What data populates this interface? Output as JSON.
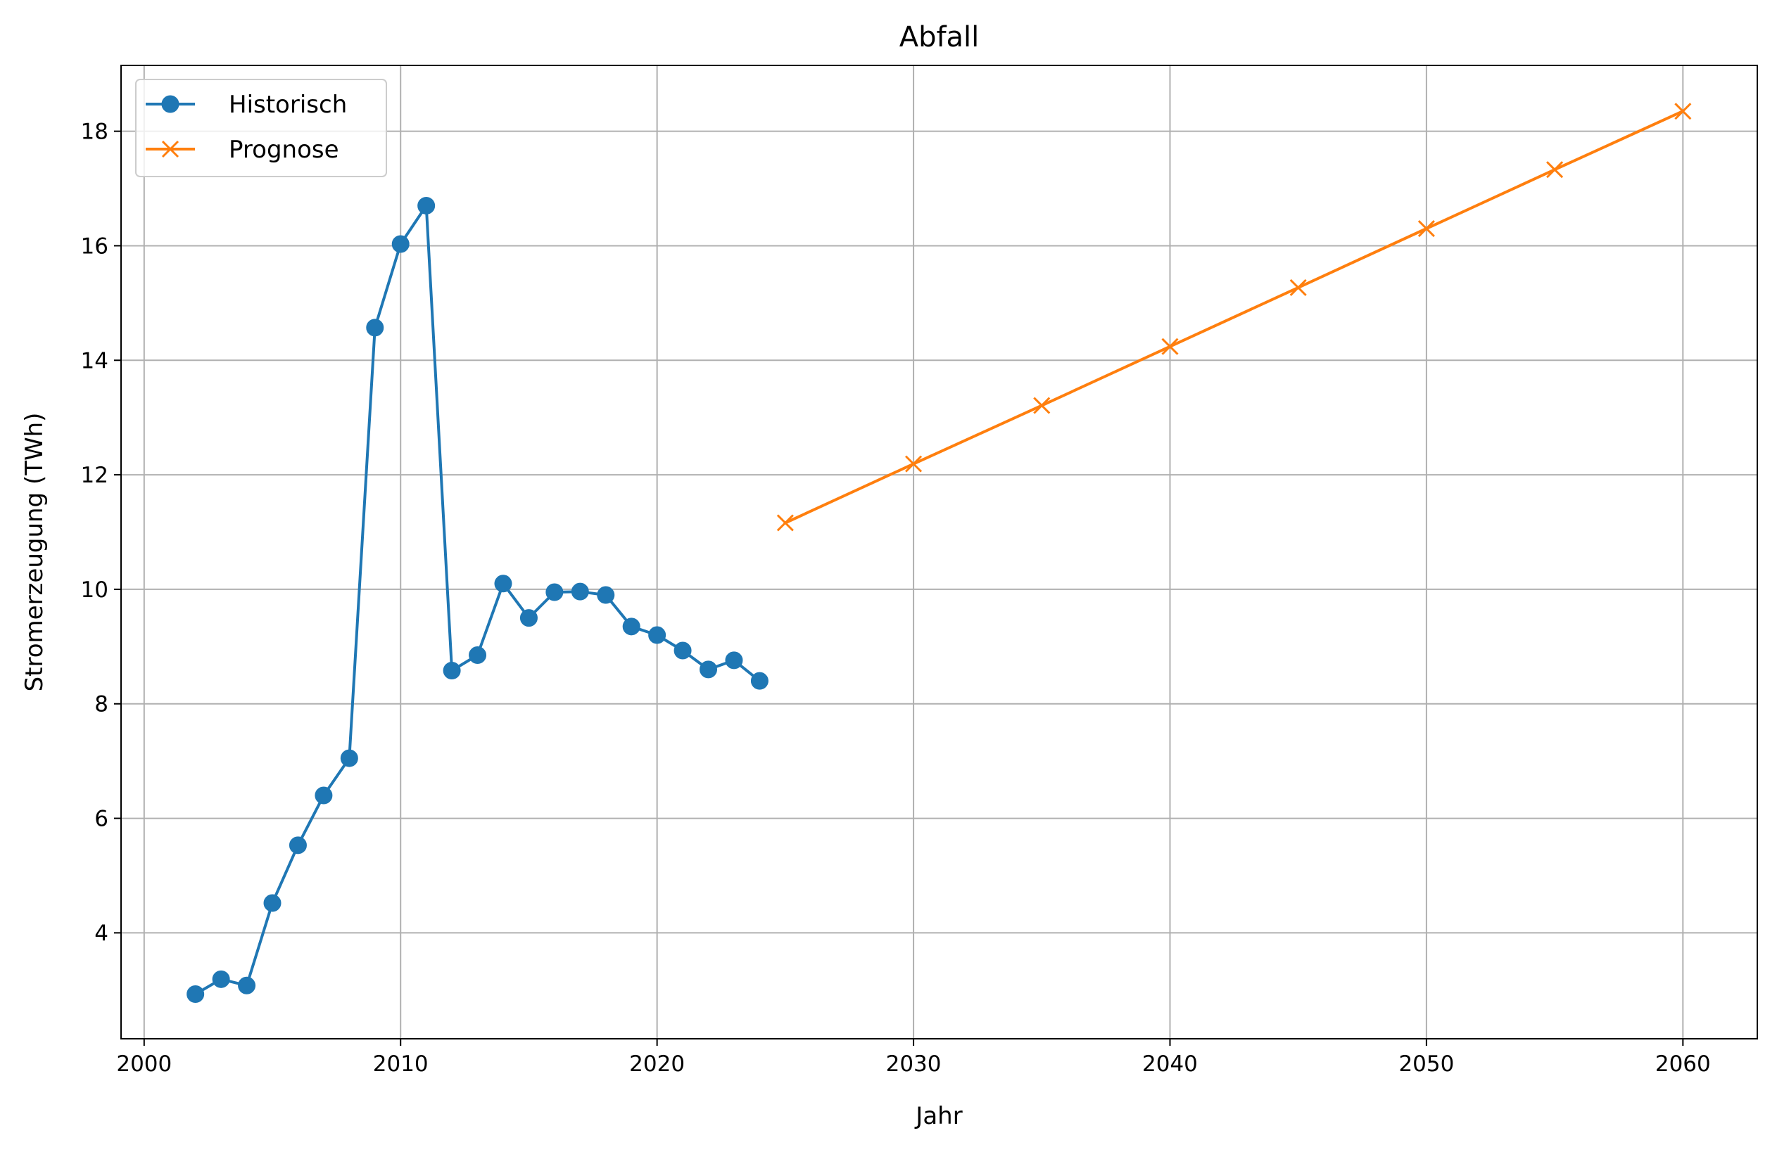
{
  "chart_data": {
    "type": "line",
    "title": "Abfall",
    "xlabel": "Jahr",
    "ylabel": "Stromerzeugung (TWh)",
    "xlim": [
      1999.1,
      2062.9
    ],
    "ylim": [
      2.15,
      19.15
    ],
    "xticks": [
      2000,
      2010,
      2020,
      2030,
      2040,
      2050,
      2060
    ],
    "yticks": [
      4,
      6,
      8,
      10,
      12,
      14,
      16,
      18
    ],
    "grid": true,
    "legend_position": "top-left",
    "series": [
      {
        "name": "Historisch",
        "color": "#1f77b4",
        "marker": "circle",
        "x": [
          2002,
          2003,
          2004,
          2005,
          2006,
          2007,
          2008,
          2009,
          2010,
          2011,
          2012,
          2013,
          2014,
          2015,
          2016,
          2017,
          2018,
          2019,
          2020,
          2021,
          2022,
          2023,
          2024
        ],
        "y": [
          2.93,
          3.19,
          3.08,
          4.52,
          5.53,
          6.4,
          7.05,
          14.57,
          16.03,
          16.7,
          8.58,
          8.85,
          10.1,
          9.5,
          9.95,
          9.96,
          9.9,
          9.35,
          9.2,
          8.93,
          8.6,
          8.76,
          8.4
        ]
      },
      {
        "name": "Prognose",
        "color": "#ff7f0e",
        "marker": "x",
        "x": [
          2025,
          2030,
          2035,
          2040,
          2045,
          2050,
          2055,
          2060
        ],
        "y": [
          11.16,
          12.19,
          13.21,
          14.24,
          15.27,
          16.3,
          17.33,
          18.35
        ]
      }
    ]
  }
}
